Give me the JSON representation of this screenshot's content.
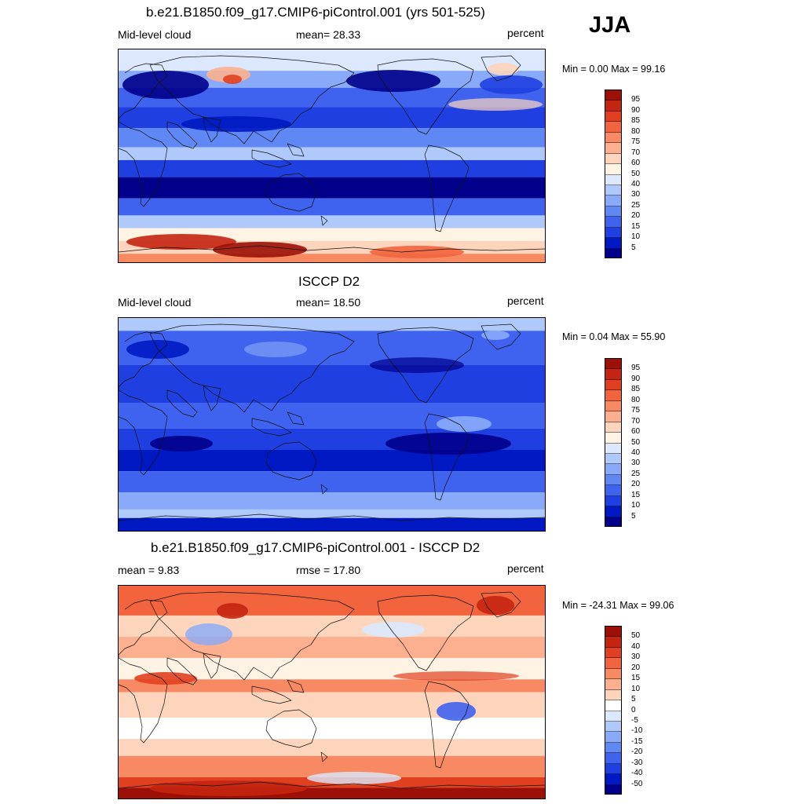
{
  "season": "JJA",
  "palette_ref": [
    "#00008b",
    "#0019c2",
    "#1f3fe0",
    "#3f63ee",
    "#6088f5",
    "#88aaf8",
    "#b0c9fb",
    "#dbe8fd",
    "#fff3e4",
    "#fdd5bd",
    "#fcb08f",
    "#f88a63",
    "#f1643d",
    "#e04020",
    "#c42510",
    "#9c1006"
  ],
  "palette_diff": [
    "#00008b",
    "#0019c2",
    "#1f3fe0",
    "#3f63ee",
    "#6088f5",
    "#88aaf8",
    "#b0c9fb",
    "#dbe8fd",
    "#ffffff",
    "#fdd5bd",
    "#fcb08f",
    "#f88a63",
    "#f1643d",
    "#e04020",
    "#c42510",
    "#9c1006"
  ],
  "panels": [
    {
      "title": "b.e21.B1850.f09_g17.CMIP6-piControl.001 (yrs 501-525)",
      "left_label": "Mid-level cloud",
      "center_label": "mean=  28.33",
      "right_label": "percent",
      "minmax": "Min =   0.00 Max =  99.16",
      "colorbar_labels": [
        "95",
        "90",
        "85",
        "80",
        "75",
        "70",
        "60",
        "50",
        "40",
        "30",
        "25",
        "20",
        "15",
        "10",
        "5"
      ],
      "field": "model"
    },
    {
      "title": "ISCCP D2",
      "left_label": "Mid-level cloud",
      "center_label": "mean=  18.50",
      "right_label": "percent",
      "minmax": "Min =   0.04 Max =  55.90",
      "colorbar_labels": [
        "95",
        "90",
        "85",
        "80",
        "75",
        "70",
        "60",
        "50",
        "40",
        "30",
        "25",
        "20",
        "15",
        "10",
        "5"
      ],
      "field": "obs"
    },
    {
      "title": "b.e21.B1850.f09_g17.CMIP6-piControl.001 - ISCCP D2",
      "left_label": "mean =   9.83",
      "center_label": "rmse =  17.80",
      "right_label": "percent",
      "minmax": "Min = -24.31 Max =  99.06",
      "colorbar_labels": [
        "50",
        "40",
        "30",
        "20",
        "15",
        "10",
        "5",
        "0",
        "-5",
        "-10",
        "-15",
        "-20",
        "-30",
        "-40",
        "-50"
      ],
      "field": "diff"
    }
  ]
}
